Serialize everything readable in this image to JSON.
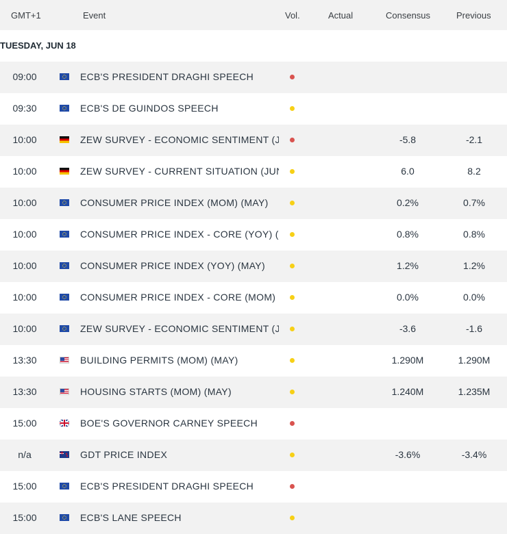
{
  "header": {
    "timezone": "GMT+1",
    "event": "Event",
    "volatility": "Vol.",
    "actual": "Actual",
    "consensus": "Consensus",
    "previous": "Previous"
  },
  "date_label": "TUESDAY, JUN 18",
  "colors": {
    "high": "#d9534f",
    "medium": "#f7d016"
  },
  "events": [
    {
      "time": "09:00",
      "flag": "eu",
      "event": "ECB'S PRESIDENT DRAGHI SPEECH",
      "vol": "high",
      "actual": "",
      "consensus": "",
      "previous": ""
    },
    {
      "time": "09:30",
      "flag": "eu",
      "event": "ECB'S DE GUINDOS SPEECH",
      "vol": "medium",
      "actual": "",
      "consensus": "",
      "previous": ""
    },
    {
      "time": "10:00",
      "flag": "de",
      "event": "ZEW SURVEY - ECONOMIC SENTIMENT (J...",
      "vol": "high",
      "actual": "",
      "consensus": "-5.8",
      "previous": "-2.1"
    },
    {
      "time": "10:00",
      "flag": "de",
      "event": "ZEW SURVEY - CURRENT SITUATION (JUN)",
      "vol": "medium",
      "actual": "",
      "consensus": "6.0",
      "previous": "8.2"
    },
    {
      "time": "10:00",
      "flag": "eu",
      "event": "CONSUMER PRICE INDEX (MOM) (MAY)",
      "vol": "medium",
      "actual": "",
      "consensus": "0.2%",
      "previous": "0.7%"
    },
    {
      "time": "10:00",
      "flag": "eu",
      "event": "CONSUMER PRICE INDEX - CORE (YOY) (...",
      "vol": "medium",
      "actual": "",
      "consensus": "0.8%",
      "previous": "0.8%"
    },
    {
      "time": "10:00",
      "flag": "eu",
      "event": "CONSUMER PRICE INDEX (YOY) (MAY)",
      "vol": "medium",
      "actual": "",
      "consensus": "1.2%",
      "previous": "1.2%"
    },
    {
      "time": "10:00",
      "flag": "eu",
      "event": "CONSUMER PRICE INDEX - CORE (MOM) (...",
      "vol": "medium",
      "actual": "",
      "consensus": "0.0%",
      "previous": "0.0%"
    },
    {
      "time": "10:00",
      "flag": "eu",
      "event": "ZEW SURVEY - ECONOMIC SENTIMENT (J...",
      "vol": "medium",
      "actual": "",
      "consensus": "-3.6",
      "previous": "-1.6"
    },
    {
      "time": "13:30",
      "flag": "us",
      "event": "BUILDING PERMITS (MOM) (MAY)",
      "vol": "medium",
      "actual": "",
      "consensus": "1.290M",
      "previous": "1.290M"
    },
    {
      "time": "13:30",
      "flag": "us",
      "event": "HOUSING STARTS (MOM) (MAY)",
      "vol": "medium",
      "actual": "",
      "consensus": "1.240M",
      "previous": "1.235M"
    },
    {
      "time": "15:00",
      "flag": "uk",
      "event": "BOE'S GOVERNOR CARNEY SPEECH",
      "vol": "high",
      "actual": "",
      "consensus": "",
      "previous": ""
    },
    {
      "time": "n/a",
      "flag": "nz",
      "event": "GDT PRICE INDEX",
      "vol": "medium",
      "actual": "",
      "consensus": "-3.6%",
      "previous": "-3.4%"
    },
    {
      "time": "15:00",
      "flag": "eu",
      "event": "ECB'S PRESIDENT DRAGHI SPEECH",
      "vol": "high",
      "actual": "",
      "consensus": "",
      "previous": ""
    },
    {
      "time": "15:00",
      "flag": "eu",
      "event": "ECB'S LANE SPEECH",
      "vol": "medium",
      "actual": "",
      "consensus": "",
      "previous": ""
    }
  ]
}
